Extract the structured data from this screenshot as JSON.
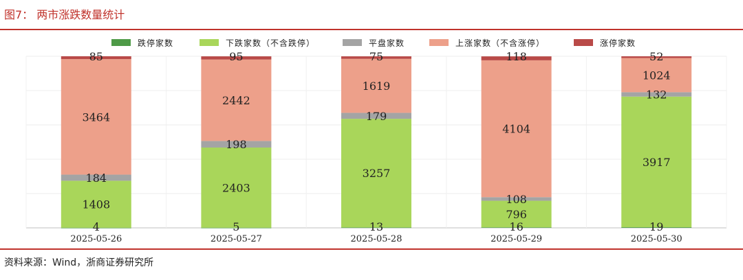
{
  "figure": {
    "title": "图7：  两市涨跌数量统计",
    "source": "资料来源：Wind，浙商证券研究所"
  },
  "chart_data": {
    "type": "bar",
    "stacked": true,
    "categories": [
      "2025-05-26",
      "2025-05-27",
      "2025-05-28",
      "2025-05-29",
      "2025-05-30"
    ],
    "series": [
      {
        "name": "跌停家数",
        "color": "#4e9a47",
        "values": [
          4,
          5,
          13,
          16,
          19
        ]
      },
      {
        "name": "下跌家数（不含跌停）",
        "color": "#a9d65a",
        "values": [
          1408,
          2403,
          3257,
          796,
          3917
        ]
      },
      {
        "name": "平盘家数",
        "color": "#a4a4a4",
        "values": [
          184,
          198,
          179,
          108,
          132
        ]
      },
      {
        "name": "上涨家数（不含涨停）",
        "color": "#eda08a",
        "values": [
          3464,
          2442,
          1619,
          4104,
          1024
        ]
      },
      {
        "name": "涨停家数",
        "color": "#b94a48",
        "values": [
          85,
          95,
          75,
          118,
          52
        ]
      }
    ],
    "ylim": [
      0,
      5145
    ],
    "legend_position": "top",
    "grid": true
  }
}
